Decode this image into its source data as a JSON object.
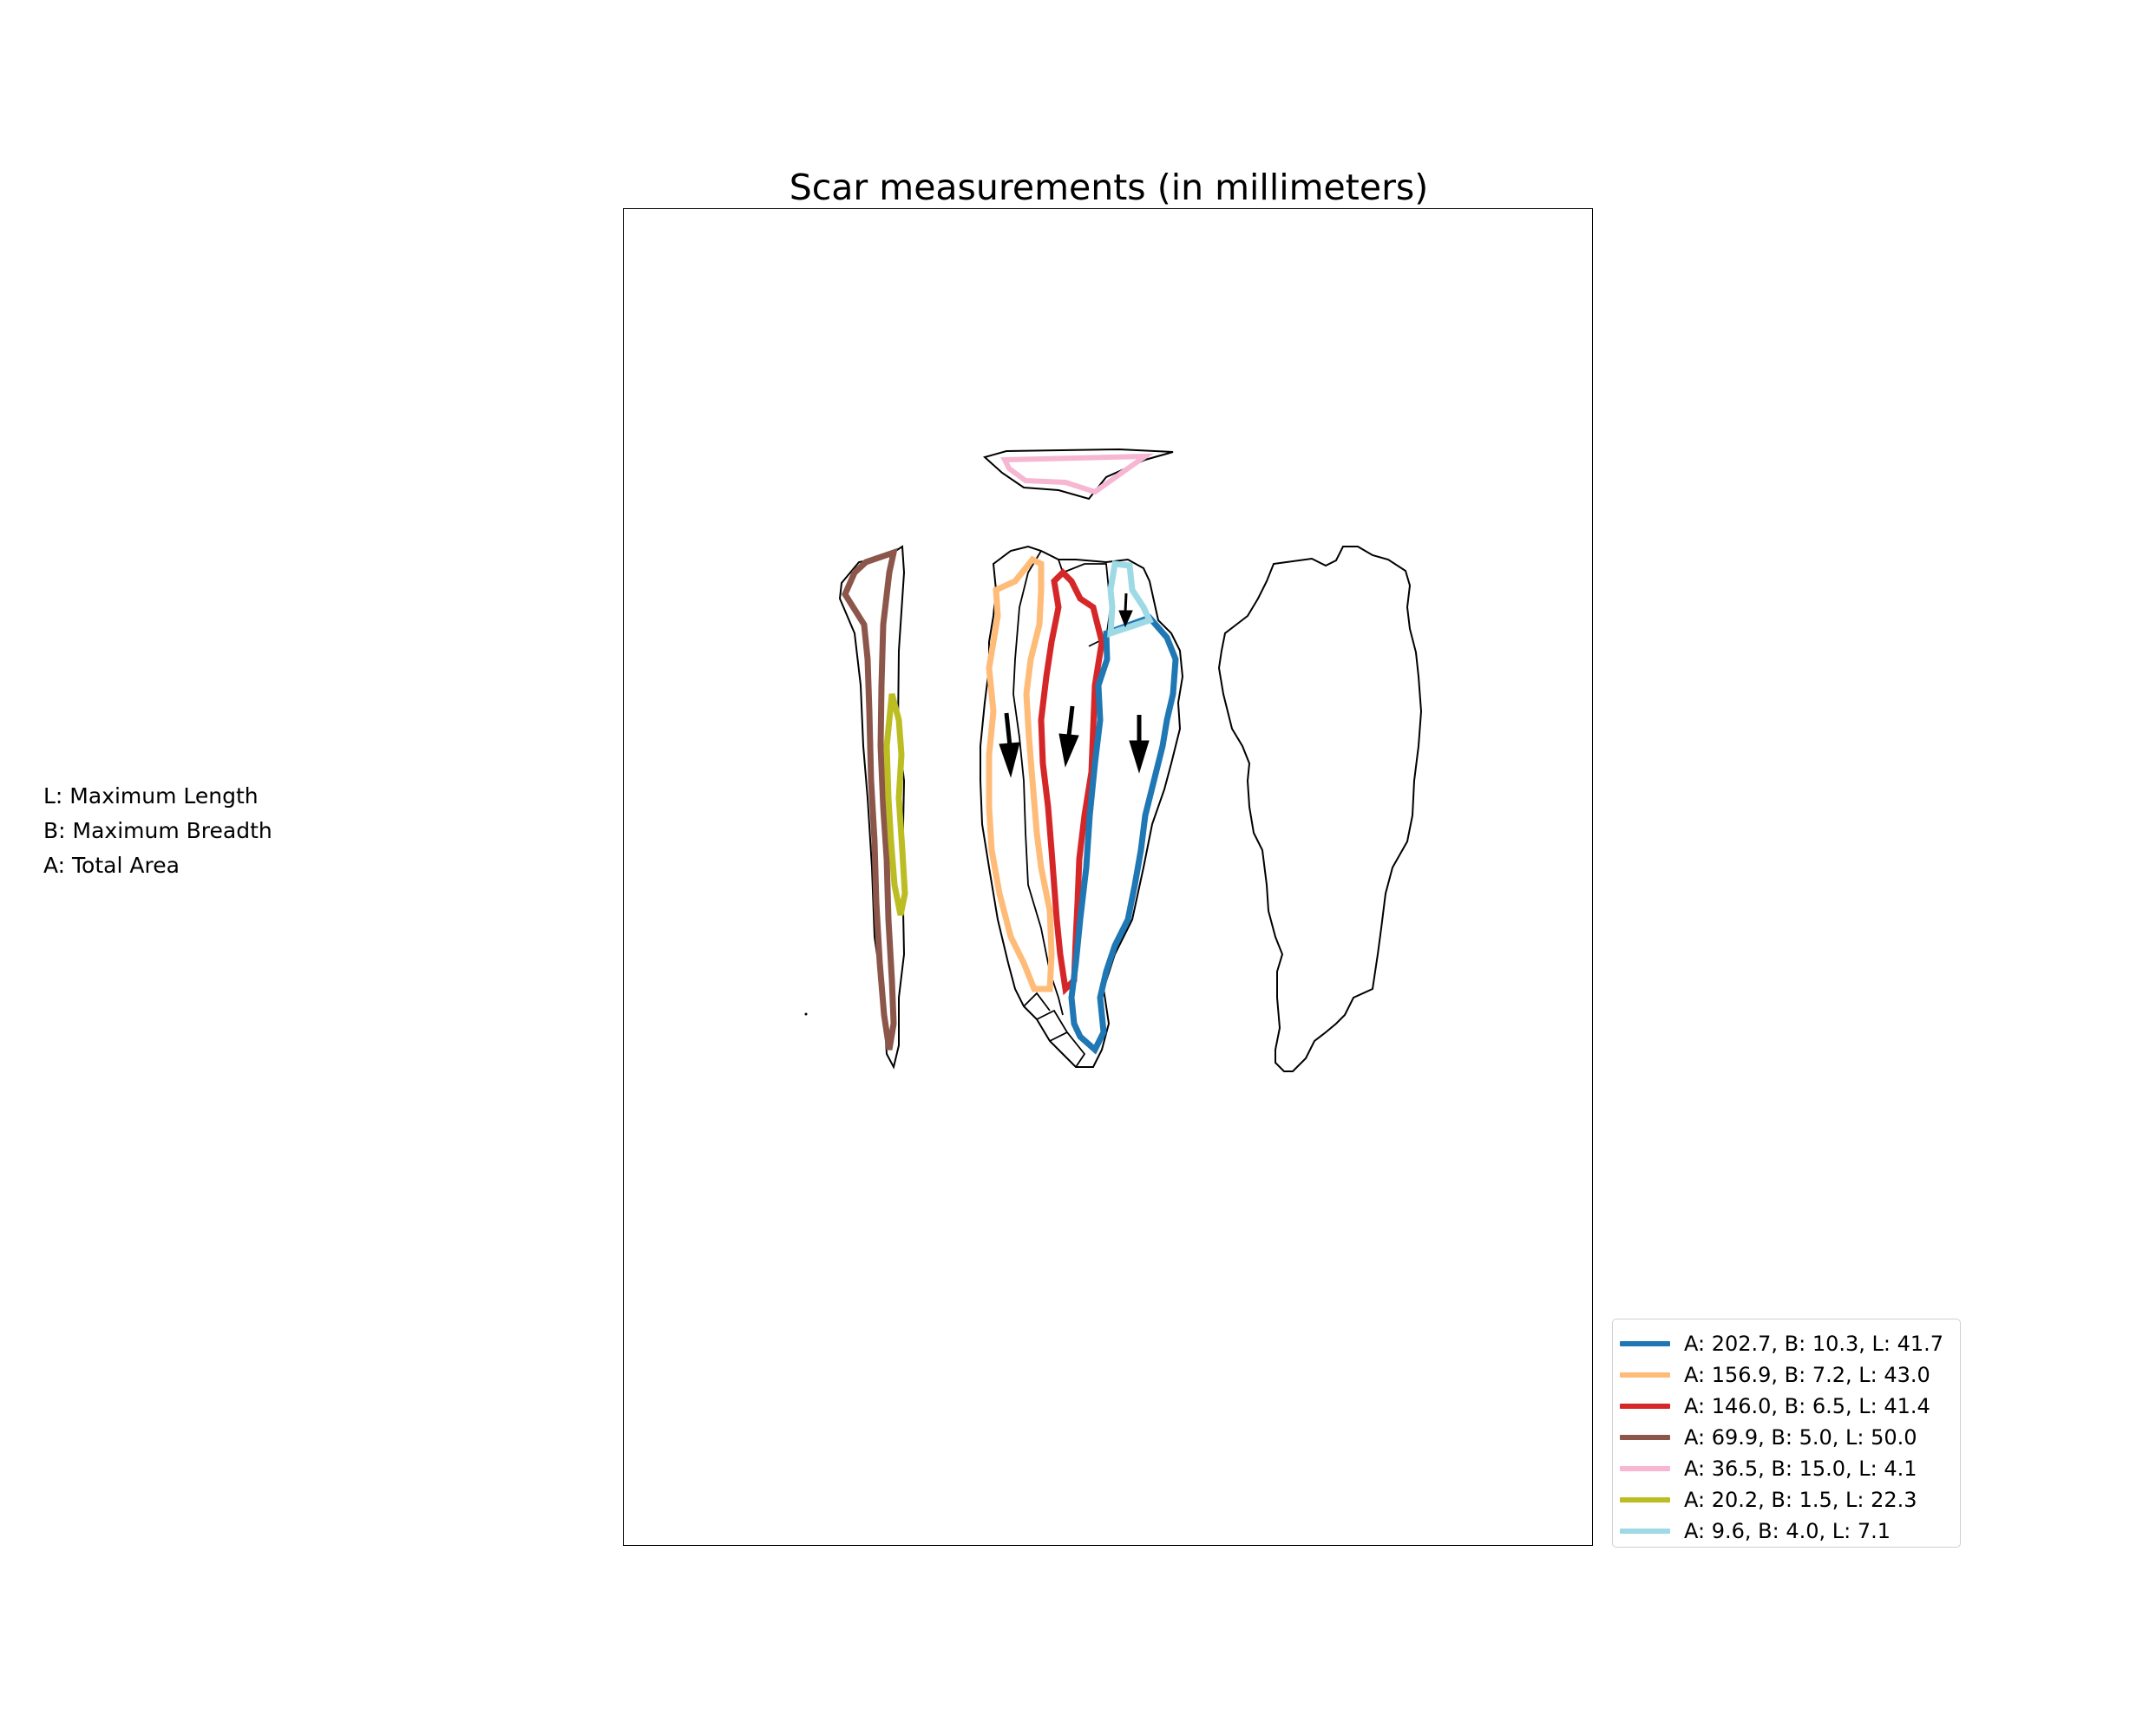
{
  "title": "Scar measurements (in millimeters)",
  "definitions": [
    "L: Maximum Length",
    "B: Maximum Breadth",
    "A: Total Area"
  ],
  "legend": [
    {
      "label": "A: 202.7, B: 10.3, L: 41.7",
      "color": "#1f77b4"
    },
    {
      "label": "A: 156.9, B: 7.2, L: 43.0",
      "color": "#ffbb78"
    },
    {
      "label": "A: 146.0, B: 6.5, L: 41.4",
      "color": "#d62728"
    },
    {
      "label": "A: 69.9, B: 5.0, L: 50.0",
      "color": "#8c564b"
    },
    {
      "label": "A: 36.5, B: 15.0, L: 4.1",
      "color": "#f7b6d2"
    },
    {
      "label": "A: 20.2, B: 1.5, L: 22.3",
      "color": "#bcbd22"
    },
    {
      "label": "A: 9.6, B: 4.0, L: 7.1",
      "color": "#9edae5"
    }
  ]
}
